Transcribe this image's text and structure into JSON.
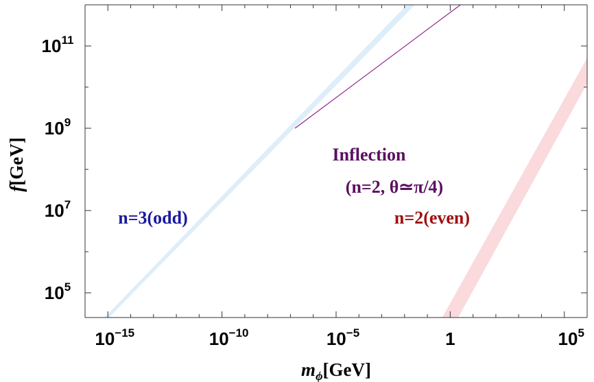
{
  "chart_data": {
    "type": "area",
    "title": "",
    "xscale": "log",
    "yscale": "log",
    "xlabel": {
      "main": "m",
      "sub": "ϕ",
      "unit": "[GeV]"
    },
    "ylabel": {
      "main": "f",
      "unit": "[GeV]"
    },
    "xlim_log10": [
      -16,
      6
    ],
    "ylim_log10": [
      4.4,
      12
    ],
    "x_ticks": [
      {
        "base": "10",
        "exp": "−15",
        "value": -15
      },
      {
        "base": "10",
        "exp": "−10",
        "value": -10
      },
      {
        "base": "10",
        "exp": "−5",
        "value": -5
      },
      {
        "base": "1",
        "exp": "",
        "value": 0
      },
      {
        "base": "10",
        "exp": "5",
        "value": 5
      }
    ],
    "y_ticks": [
      {
        "base": "10",
        "exp": "5",
        "value": 5
      },
      {
        "base": "10",
        "exp": "7",
        "value": 7
      },
      {
        "base": "10",
        "exp": "9",
        "value": 9
      },
      {
        "base": "10",
        "exp": "11",
        "value": 11
      }
    ],
    "grid": false,
    "series": [
      {
        "label": "n=3(odd)",
        "color": "#ddeefa",
        "label_color": "#1a1aa0",
        "upper_log10": [
          [
            -14.95,
            4.4
          ],
          [
            -1.55,
            12.0
          ]
        ],
        "lower_log10": [
          [
            -15.15,
            4.4
          ],
          [
            -1.9,
            12.0
          ]
        ]
      },
      {
        "label": "Inflection",
        "sublabel": "(n=2, θ≃π/4)",
        "color": "#8b1a8b",
        "label_color": "#5a1060",
        "line_log10": [
          [
            -6.8,
            9.0
          ],
          [
            0.45,
            12.0
          ]
        ]
      },
      {
        "label": "n=2(even)",
        "color": "#fadadd",
        "label_color": "#a01010",
        "upper_log10": [
          [
            0.35,
            4.4
          ],
          [
            7.9,
            12.0
          ]
        ],
        "lower_log10": [
          [
            -0.35,
            4.4
          ],
          [
            7.3,
            12.0
          ]
        ]
      }
    ]
  }
}
